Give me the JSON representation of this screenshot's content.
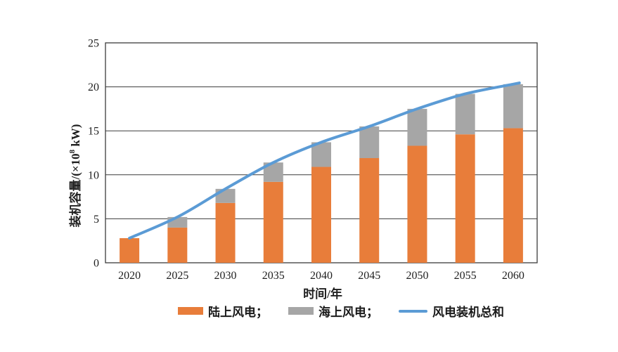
{
  "chart_data": {
    "type": "bar",
    "subtype": "stacked-bar-with-line",
    "title": "",
    "xlabel": "时间/年",
    "ylabel": "装机容量/(×10⁸ kW)",
    "categories": [
      "2020",
      "2025",
      "2030",
      "2035",
      "2040",
      "2045",
      "2050",
      "2055",
      "2060"
    ],
    "series": [
      {
        "id": "onshore",
        "name": "陆上风电",
        "kind": "bar",
        "color": "#e87d3a",
        "values": [
          2.8,
          4.0,
          6.8,
          9.2,
          10.9,
          11.9,
          13.3,
          14.6,
          15.3
        ]
      },
      {
        "id": "offshore",
        "name": "海上风电",
        "kind": "bar",
        "color": "#a6a6a6",
        "values": [
          0.0,
          1.2,
          1.6,
          2.2,
          2.8,
          3.6,
          4.2,
          4.6,
          5.0
        ]
      },
      {
        "id": "total",
        "name": "风电装机总和",
        "kind": "line",
        "color": "#5b9bd5",
        "values": [
          2.8,
          5.2,
          8.4,
          11.4,
          13.7,
          15.5,
          17.5,
          19.2,
          20.3
        ]
      }
    ],
    "ylim": [
      0,
      25
    ],
    "ytick_step": 5,
    "grid": "horizontal",
    "plot_border": true,
    "legend_position": "bottom"
  },
  "axis": {
    "ylabel_prefix": "装机容量/(×10",
    "ylabel_sup": "8",
    "ylabel_suffix": " kW)",
    "xlabel": "时间/年",
    "yticks": [
      "0",
      "5",
      "10",
      "15",
      "20",
      "25"
    ]
  },
  "legend": {
    "items": [
      {
        "label": "陆上风电；"
      },
      {
        "label": "海上风电；"
      },
      {
        "label": "风电装机总和"
      }
    ]
  },
  "colors": {
    "onshore": "#e87d3a",
    "offshore": "#a6a6a6",
    "total_line": "#5b9bd5",
    "grid": "#3c3c3c",
    "text": "#1f1f1f"
  }
}
